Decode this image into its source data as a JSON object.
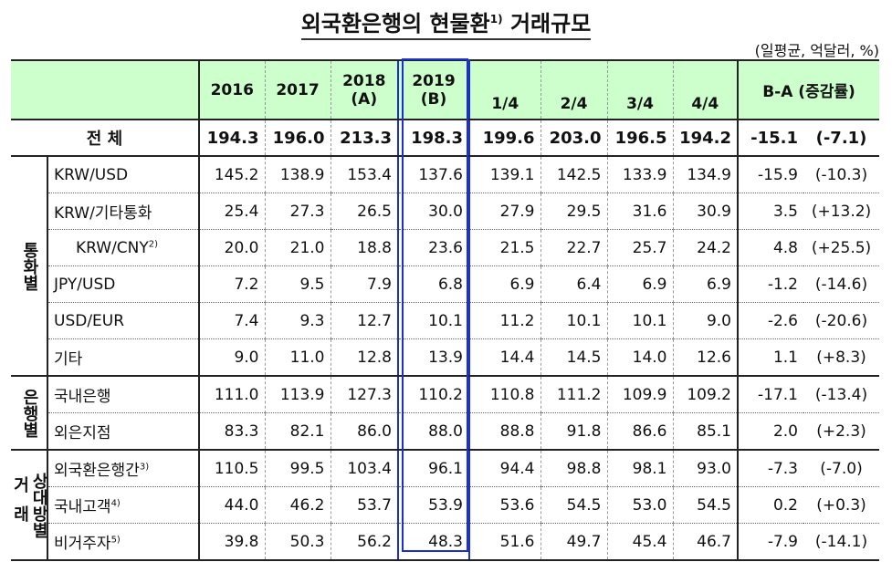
{
  "title": "외국환은행의 현물환",
  "title_sup": "1)",
  "title_tail": "거래규모",
  "unit": "(일평균, 억달러, %)",
  "header": {
    "y2016": "2016",
    "y2017": "2017",
    "y2018": "2018",
    "y2018b": "(A)",
    "y2019": "2019",
    "y2019b": "(B)",
    "q1": "1/4",
    "q2": "2/4",
    "q3": "3/4",
    "q4": "4/4",
    "diff": "B-A (증감률)"
  },
  "total": {
    "label": "전 체",
    "values": [
      "194.3",
      "196.0",
      "213.3",
      "198.3",
      "199.6",
      "203.0",
      "196.5",
      "194.2",
      "-15.1",
      "(-7.1)"
    ]
  },
  "groups": {
    "currency": "통화별",
    "bank": "은행별",
    "party_a": "거래",
    "party_b": "상대방별"
  },
  "rows": [
    {
      "label": "KRW/USD",
      "sup": "",
      "values": [
        "145.2",
        "138.9",
        "153.4",
        "137.6",
        "139.1",
        "142.5",
        "133.9",
        "134.9",
        "-15.9",
        "(-10.3)"
      ]
    },
    {
      "label": "KRW/기타통화",
      "sup": "",
      "values": [
        "25.4",
        "27.3",
        "26.5",
        "30.0",
        "27.9",
        "29.5",
        "31.6",
        "30.9",
        "3.5",
        "(+13.2)"
      ]
    },
    {
      "label": "KRW/CNY",
      "sup": "2)",
      "values": [
        "20.0",
        "21.0",
        "18.8",
        "23.6",
        "21.5",
        "22.7",
        "25.7",
        "24.2",
        "4.8",
        "(+25.5)"
      ]
    },
    {
      "label": "JPY/USD",
      "sup": "",
      "values": [
        "7.2",
        "9.5",
        "7.9",
        "6.8",
        "6.9",
        "6.4",
        "6.9",
        "6.9",
        "-1.2",
        "(-14.6)"
      ]
    },
    {
      "label": "USD/EUR",
      "sup": "",
      "values": [
        "7.4",
        "9.3",
        "12.7",
        "10.1",
        "11.2",
        "10.1",
        "10.1",
        "9.0",
        "-2.6",
        "(-20.6)"
      ]
    },
    {
      "label": "기타",
      "sup": "",
      "values": [
        "9.0",
        "11.0",
        "12.8",
        "13.9",
        "14.4",
        "14.5",
        "14.0",
        "12.6",
        "1.1",
        "(+8.3)"
      ]
    },
    {
      "label": "국내은행",
      "sup": "",
      "values": [
        "111.0",
        "113.9",
        "127.3",
        "110.2",
        "110.8",
        "111.2",
        "109.9",
        "109.2",
        "-17.1",
        "(-13.4)"
      ]
    },
    {
      "label": "외은지점",
      "sup": "",
      "values": [
        "83.3",
        "82.1",
        "86.0",
        "88.0",
        "88.8",
        "91.8",
        "86.6",
        "85.1",
        "2.0",
        "(+2.3)"
      ]
    },
    {
      "label": "외국환은행간",
      "sup": "3)",
      "values": [
        "110.5",
        "99.5",
        "103.4",
        "96.1",
        "94.4",
        "98.8",
        "98.1",
        "93.0",
        "-7.3",
        "(-7.0)"
      ]
    },
    {
      "label": "국내고객",
      "sup": "4)",
      "values": [
        "44.0",
        "46.2",
        "53.7",
        "53.9",
        "53.6",
        "54.5",
        "53.0",
        "54.5",
        "0.2",
        "(+0.3)"
      ]
    },
    {
      "label": "비거주자",
      "sup": "5)",
      "values": [
        "39.8",
        "50.3",
        "56.2",
        "48.3",
        "51.6",
        "49.7",
        "45.4",
        "46.7",
        "-7.9",
        "(-14.1)"
      ]
    }
  ]
}
